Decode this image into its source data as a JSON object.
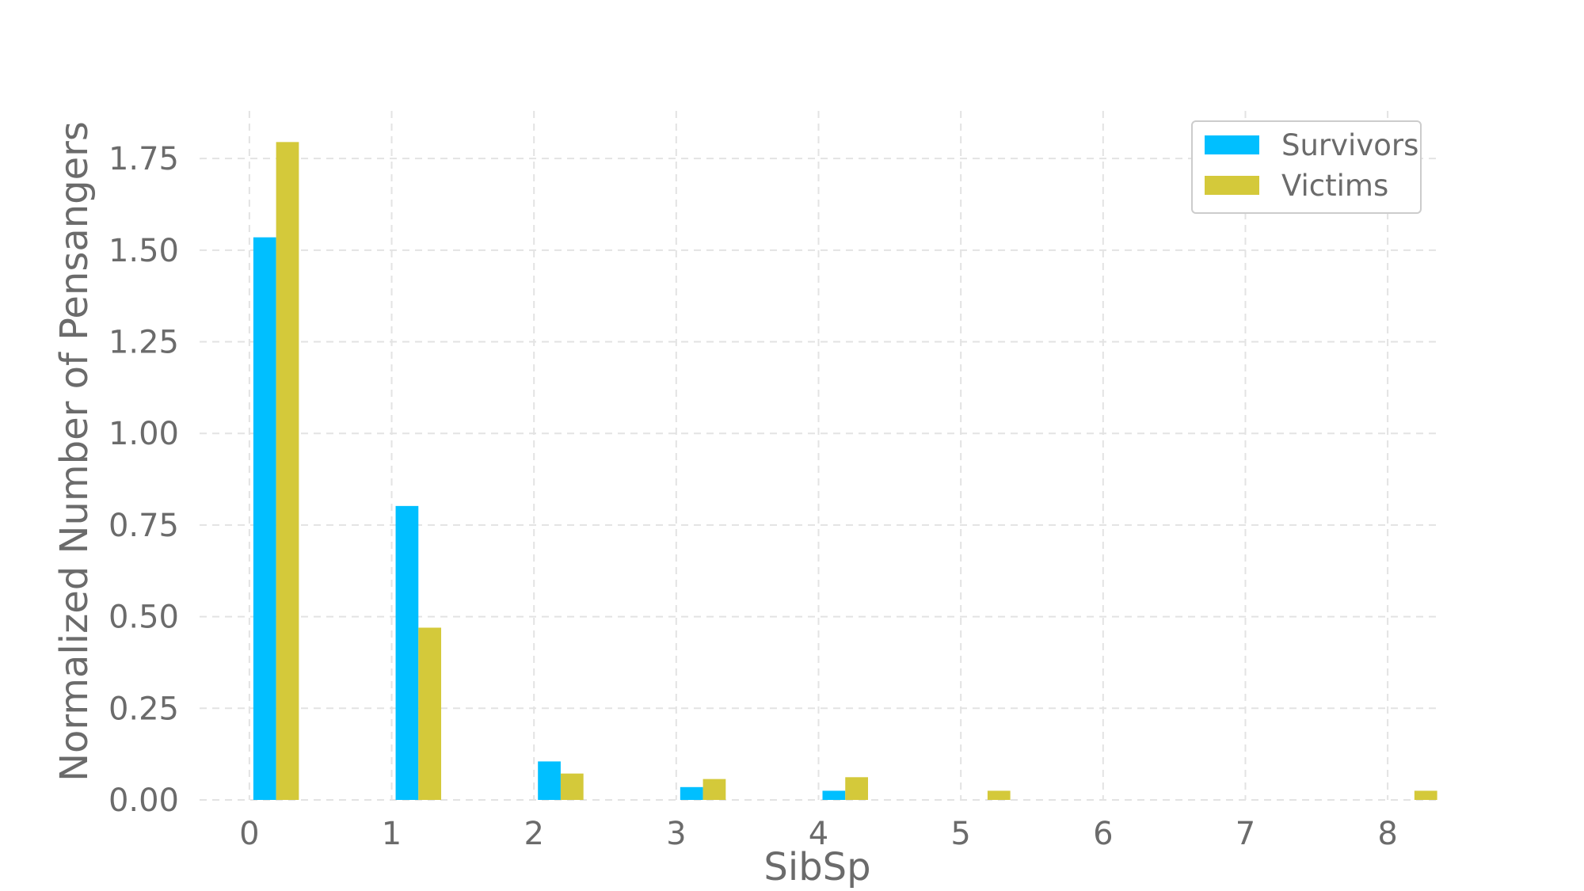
{
  "chart_data": {
    "type": "bar",
    "xlabel": "SibSp",
    "ylabel": "Normalized Number of Pensangers",
    "x": [
      0,
      1,
      2,
      3,
      4,
      5,
      6,
      7,
      8
    ],
    "x_ticks": [
      "0",
      "1",
      "2",
      "3",
      "4",
      "5",
      "6",
      "7",
      "8"
    ],
    "xlim": [
      -0.35,
      8.35
    ],
    "y_ticks": [
      "0.00",
      "0.25",
      "0.50",
      "0.75",
      "1.00",
      "1.25",
      "1.50",
      "1.75"
    ],
    "ylim": [
      0,
      1.88
    ],
    "grid": true,
    "legend_position": "top-right",
    "series": [
      {
        "name": "Survivors",
        "color": "#00bfff",
        "x": [
          0,
          1,
          2,
          3,
          4
        ],
        "values": [
          1.535,
          0.802,
          0.105,
          0.035,
          0.025
        ]
      },
      {
        "name": "Victims",
        "color": "#d4c93a",
        "x": [
          0,
          1,
          2,
          3,
          4,
          5,
          8
        ],
        "values": [
          1.795,
          0.47,
          0.072,
          0.057,
          0.062,
          0.025,
          0.025
        ]
      }
    ]
  }
}
